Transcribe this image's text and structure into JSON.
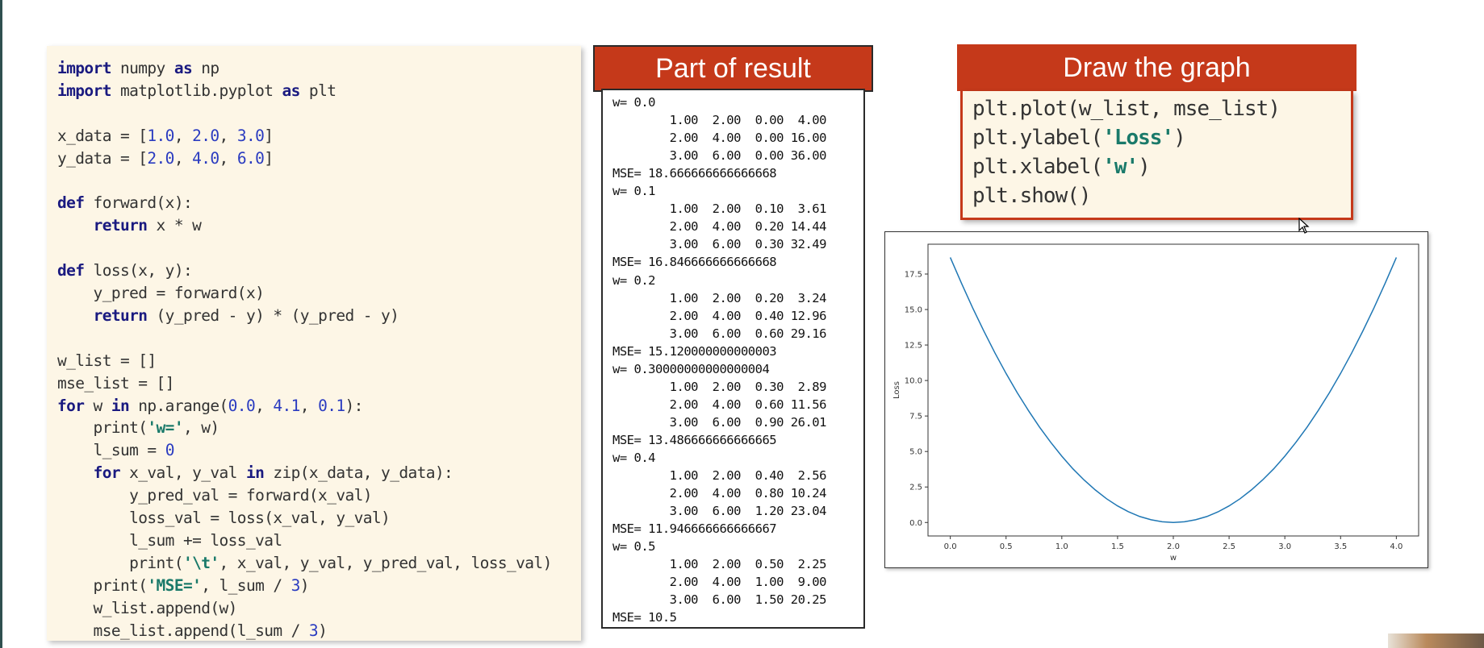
{
  "code_panel": {
    "lines": [
      [
        {
          "t": "import",
          "c": "kw"
        },
        {
          "t": " numpy ",
          "c": "plain"
        },
        {
          "t": "as",
          "c": "kw"
        },
        {
          "t": " np",
          "c": "plain"
        }
      ],
      [
        {
          "t": "import",
          "c": "kw"
        },
        {
          "t": " matplotlib.pyplot ",
          "c": "plain"
        },
        {
          "t": "as",
          "c": "kw"
        },
        {
          "t": " plt",
          "c": "plain"
        }
      ],
      [],
      [
        {
          "t": "x_data = [",
          "c": "plain"
        },
        {
          "t": "1.0",
          "c": "num"
        },
        {
          "t": ", ",
          "c": "plain"
        },
        {
          "t": "2.0",
          "c": "num"
        },
        {
          "t": ", ",
          "c": "plain"
        },
        {
          "t": "3.0",
          "c": "num"
        },
        {
          "t": "]",
          "c": "plain"
        }
      ],
      [
        {
          "t": "y_data = [",
          "c": "plain"
        },
        {
          "t": "2.0",
          "c": "num"
        },
        {
          "t": ", ",
          "c": "plain"
        },
        {
          "t": "4.0",
          "c": "num"
        },
        {
          "t": ", ",
          "c": "plain"
        },
        {
          "t": "6.0",
          "c": "num"
        },
        {
          "t": "]",
          "c": "plain"
        }
      ],
      [],
      [
        {
          "t": "def",
          "c": "kw"
        },
        {
          "t": " forward(x):",
          "c": "plain"
        }
      ],
      [
        {
          "t": "    ",
          "c": "plain"
        },
        {
          "t": "return",
          "c": "kw"
        },
        {
          "t": " x * w",
          "c": "plain"
        }
      ],
      [],
      [
        {
          "t": "def",
          "c": "kw"
        },
        {
          "t": " loss(x, y):",
          "c": "plain"
        }
      ],
      [
        {
          "t": "    y_pred = forward(x)",
          "c": "plain"
        }
      ],
      [
        {
          "t": "    ",
          "c": "plain"
        },
        {
          "t": "return",
          "c": "kw"
        },
        {
          "t": " (y_pred - y) * (y_pred - y)",
          "c": "plain"
        }
      ],
      [],
      [
        {
          "t": "w_list = []",
          "c": "plain"
        }
      ],
      [
        {
          "t": "mse_list = []",
          "c": "plain"
        }
      ],
      [
        {
          "t": "for",
          "c": "kw"
        },
        {
          "t": " w ",
          "c": "plain"
        },
        {
          "t": "in",
          "c": "kw"
        },
        {
          "t": " np.arange(",
          "c": "plain"
        },
        {
          "t": "0.0",
          "c": "num"
        },
        {
          "t": ", ",
          "c": "plain"
        },
        {
          "t": "4.1",
          "c": "num"
        },
        {
          "t": ", ",
          "c": "plain"
        },
        {
          "t": "0.1",
          "c": "num"
        },
        {
          "t": "):",
          "c": "plain"
        }
      ],
      [
        {
          "t": "    print(",
          "c": "plain"
        },
        {
          "t": "'w='",
          "c": "str"
        },
        {
          "t": ", w)",
          "c": "plain"
        }
      ],
      [
        {
          "t": "    l_sum = ",
          "c": "plain"
        },
        {
          "t": "0",
          "c": "num"
        }
      ],
      [
        {
          "t": "    ",
          "c": "plain"
        },
        {
          "t": "for",
          "c": "kw"
        },
        {
          "t": " x_val, y_val ",
          "c": "plain"
        },
        {
          "t": "in",
          "c": "kw"
        },
        {
          "t": " zip(x_data, y_data):",
          "c": "plain"
        }
      ],
      [
        {
          "t": "        y_pred_val = forward(x_val)",
          "c": "plain"
        }
      ],
      [
        {
          "t": "        loss_val = loss(x_val, y_val)",
          "c": "plain"
        }
      ],
      [
        {
          "t": "        l_sum += loss_val",
          "c": "plain"
        }
      ],
      [
        {
          "t": "        print(",
          "c": "plain"
        },
        {
          "t": "'\\t'",
          "c": "str"
        },
        {
          "t": ", x_val, y_val, y_pred_val, loss_val)",
          "c": "plain"
        }
      ],
      [
        {
          "t": "    print(",
          "c": "plain"
        },
        {
          "t": "'MSE='",
          "c": "str"
        },
        {
          "t": ", l_sum / ",
          "c": "plain"
        },
        {
          "t": "3",
          "c": "num"
        },
        {
          "t": ")",
          "c": "plain"
        }
      ],
      [
        {
          "t": "    w_list.append(w)",
          "c": "plain"
        }
      ],
      [
        {
          "t": "    mse_list.append(l_sum / ",
          "c": "plain"
        },
        {
          "t": "3",
          "c": "num"
        },
        {
          "t": ")",
          "c": "plain"
        }
      ]
    ]
  },
  "result_panel": {
    "title": "Part of result",
    "lines": [
      "w= 0.0",
      "        1.00  2.00  0.00  4.00",
      "        2.00  4.00  0.00 16.00",
      "        3.00  6.00  0.00 36.00",
      "MSE= 18.666666666666668",
      "w= 0.1",
      "        1.00  2.00  0.10  3.61",
      "        2.00  4.00  0.20 14.44",
      "        3.00  6.00  0.30 32.49",
      "MSE= 16.846666666666668",
      "w= 0.2",
      "        1.00  2.00  0.20  3.24",
      "        2.00  4.00  0.40 12.96",
      "        3.00  6.00  0.60 29.16",
      "MSE= 15.120000000000003",
      "w= 0.30000000000000004",
      "        1.00  2.00  0.30  2.89",
      "        2.00  4.00  0.60 11.56",
      "        3.00  6.00  0.90 26.01",
      "MSE= 13.486666666666665",
      "w= 0.4",
      "        1.00  2.00  0.40  2.56",
      "        2.00  4.00  0.80 10.24",
      "        3.00  6.00  1.20 23.04",
      "MSE= 11.946666666666667",
      "w= 0.5",
      "        1.00  2.00  0.50  2.25",
      "        2.00  4.00  1.00  9.00",
      "        3.00  6.00  1.50 20.25",
      "MSE= 10.5"
    ]
  },
  "graph_panel": {
    "title": "Draw the graph",
    "lines": [
      [
        {
          "t": "plt.plot(w_list, mse_list)",
          "c": "plain"
        }
      ],
      [
        {
          "t": "plt.ylabel(",
          "c": "plain"
        },
        {
          "t": "'Loss'",
          "c": "str"
        },
        {
          "t": ")",
          "c": "plain"
        }
      ],
      [
        {
          "t": "plt.xlabel(",
          "c": "plain"
        },
        {
          "t": "'w'",
          "c": "str"
        },
        {
          "t": ")",
          "c": "plain"
        }
      ],
      [
        {
          "t": "plt.show()",
          "c": "plain"
        }
      ]
    ]
  },
  "chart_data": {
    "type": "line",
    "xlabel": "w",
    "ylabel": "Loss",
    "xlim": [
      -0.2,
      4.2
    ],
    "ylim": [
      -0.95,
      19.6
    ],
    "xticks": [
      "0.0",
      "0.5",
      "1.0",
      "1.5",
      "2.0",
      "2.5",
      "3.0",
      "3.5",
      "4.0"
    ],
    "yticks": [
      "0.0",
      "2.5",
      "5.0",
      "7.5",
      "10.0",
      "12.5",
      "15.0",
      "17.5"
    ],
    "series": [
      {
        "color": "#1f77b4",
        "x": [
          0.0,
          0.1,
          0.2,
          0.3,
          0.4,
          0.5,
          0.6,
          0.7,
          0.8,
          0.9,
          1.0,
          1.1,
          1.2,
          1.3,
          1.4,
          1.5,
          1.6,
          1.7,
          1.8,
          1.9,
          2.0,
          2.1,
          2.2,
          2.3,
          2.4,
          2.5,
          2.6,
          2.7,
          2.8,
          2.9,
          3.0,
          3.1,
          3.2,
          3.3,
          3.4,
          3.5,
          3.6,
          3.7,
          3.8,
          3.9,
          4.0
        ],
        "values": [
          18.67,
          16.85,
          15.12,
          13.49,
          11.95,
          10.5,
          9.15,
          7.89,
          6.72,
          5.65,
          4.67,
          3.78,
          2.99,
          2.29,
          1.68,
          1.17,
          0.75,
          0.42,
          0.19,
          0.05,
          0.0,
          0.05,
          0.19,
          0.42,
          0.75,
          1.17,
          1.68,
          2.29,
          2.99,
          3.78,
          4.67,
          5.65,
          6.72,
          7.89,
          9.15,
          10.5,
          11.95,
          13.49,
          15.12,
          16.85,
          18.67
        ]
      }
    ]
  }
}
